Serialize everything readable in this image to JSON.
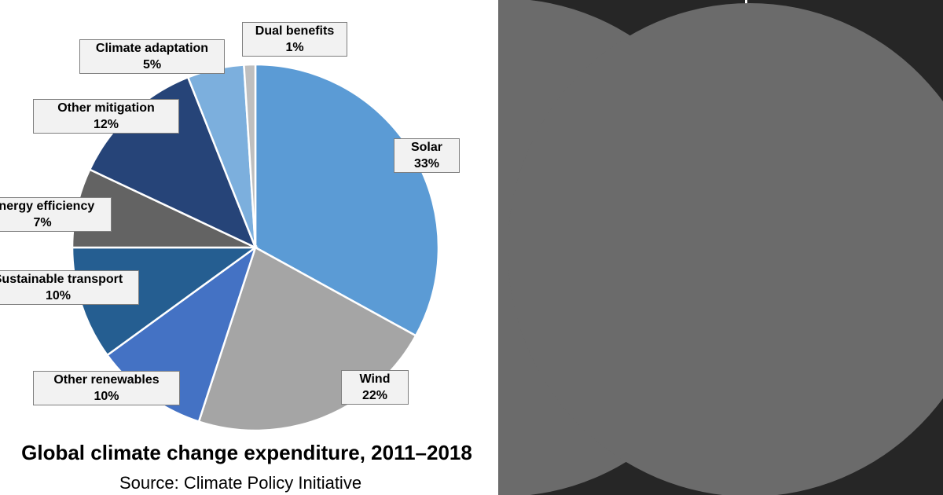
{
  "chart_data": {
    "type": "pie",
    "title": "Global climate change expenditure, 2011–2018",
    "source": "Source: Climate Policy Initiative",
    "slices": [
      {
        "label": "Solar",
        "pct_label": "33%",
        "value": 33,
        "color": "#5b9bd5"
      },
      {
        "label": "Wind",
        "pct_label": "22%",
        "value": 22,
        "color": "#a5a5a5"
      },
      {
        "label": "Other renewables",
        "pct_label": "10%",
        "value": 10,
        "color": "#4472c4"
      },
      {
        "label": "Sustainable transport",
        "pct_label": "10%",
        "value": 10,
        "color": "#255e91"
      },
      {
        "label": "Energy efficiency",
        "pct_label": "7%",
        "value": 7,
        "color": "#636363"
      },
      {
        "label": "Other mitigation",
        "pct_label": "12%",
        "value": 12,
        "color": "#264478"
      },
      {
        "label": "Climate adaptation",
        "pct_label": "5%",
        "value": 5,
        "color": "#7cafdd"
      },
      {
        "label": "Dual benefits",
        "pct_label": "1%",
        "value": 1,
        "color": "#bfbfbf"
      }
    ]
  },
  "colors": {
    "right_panel_bg": "#262626",
    "disc": "#6b6b6b",
    "divider": "#ffffff"
  }
}
